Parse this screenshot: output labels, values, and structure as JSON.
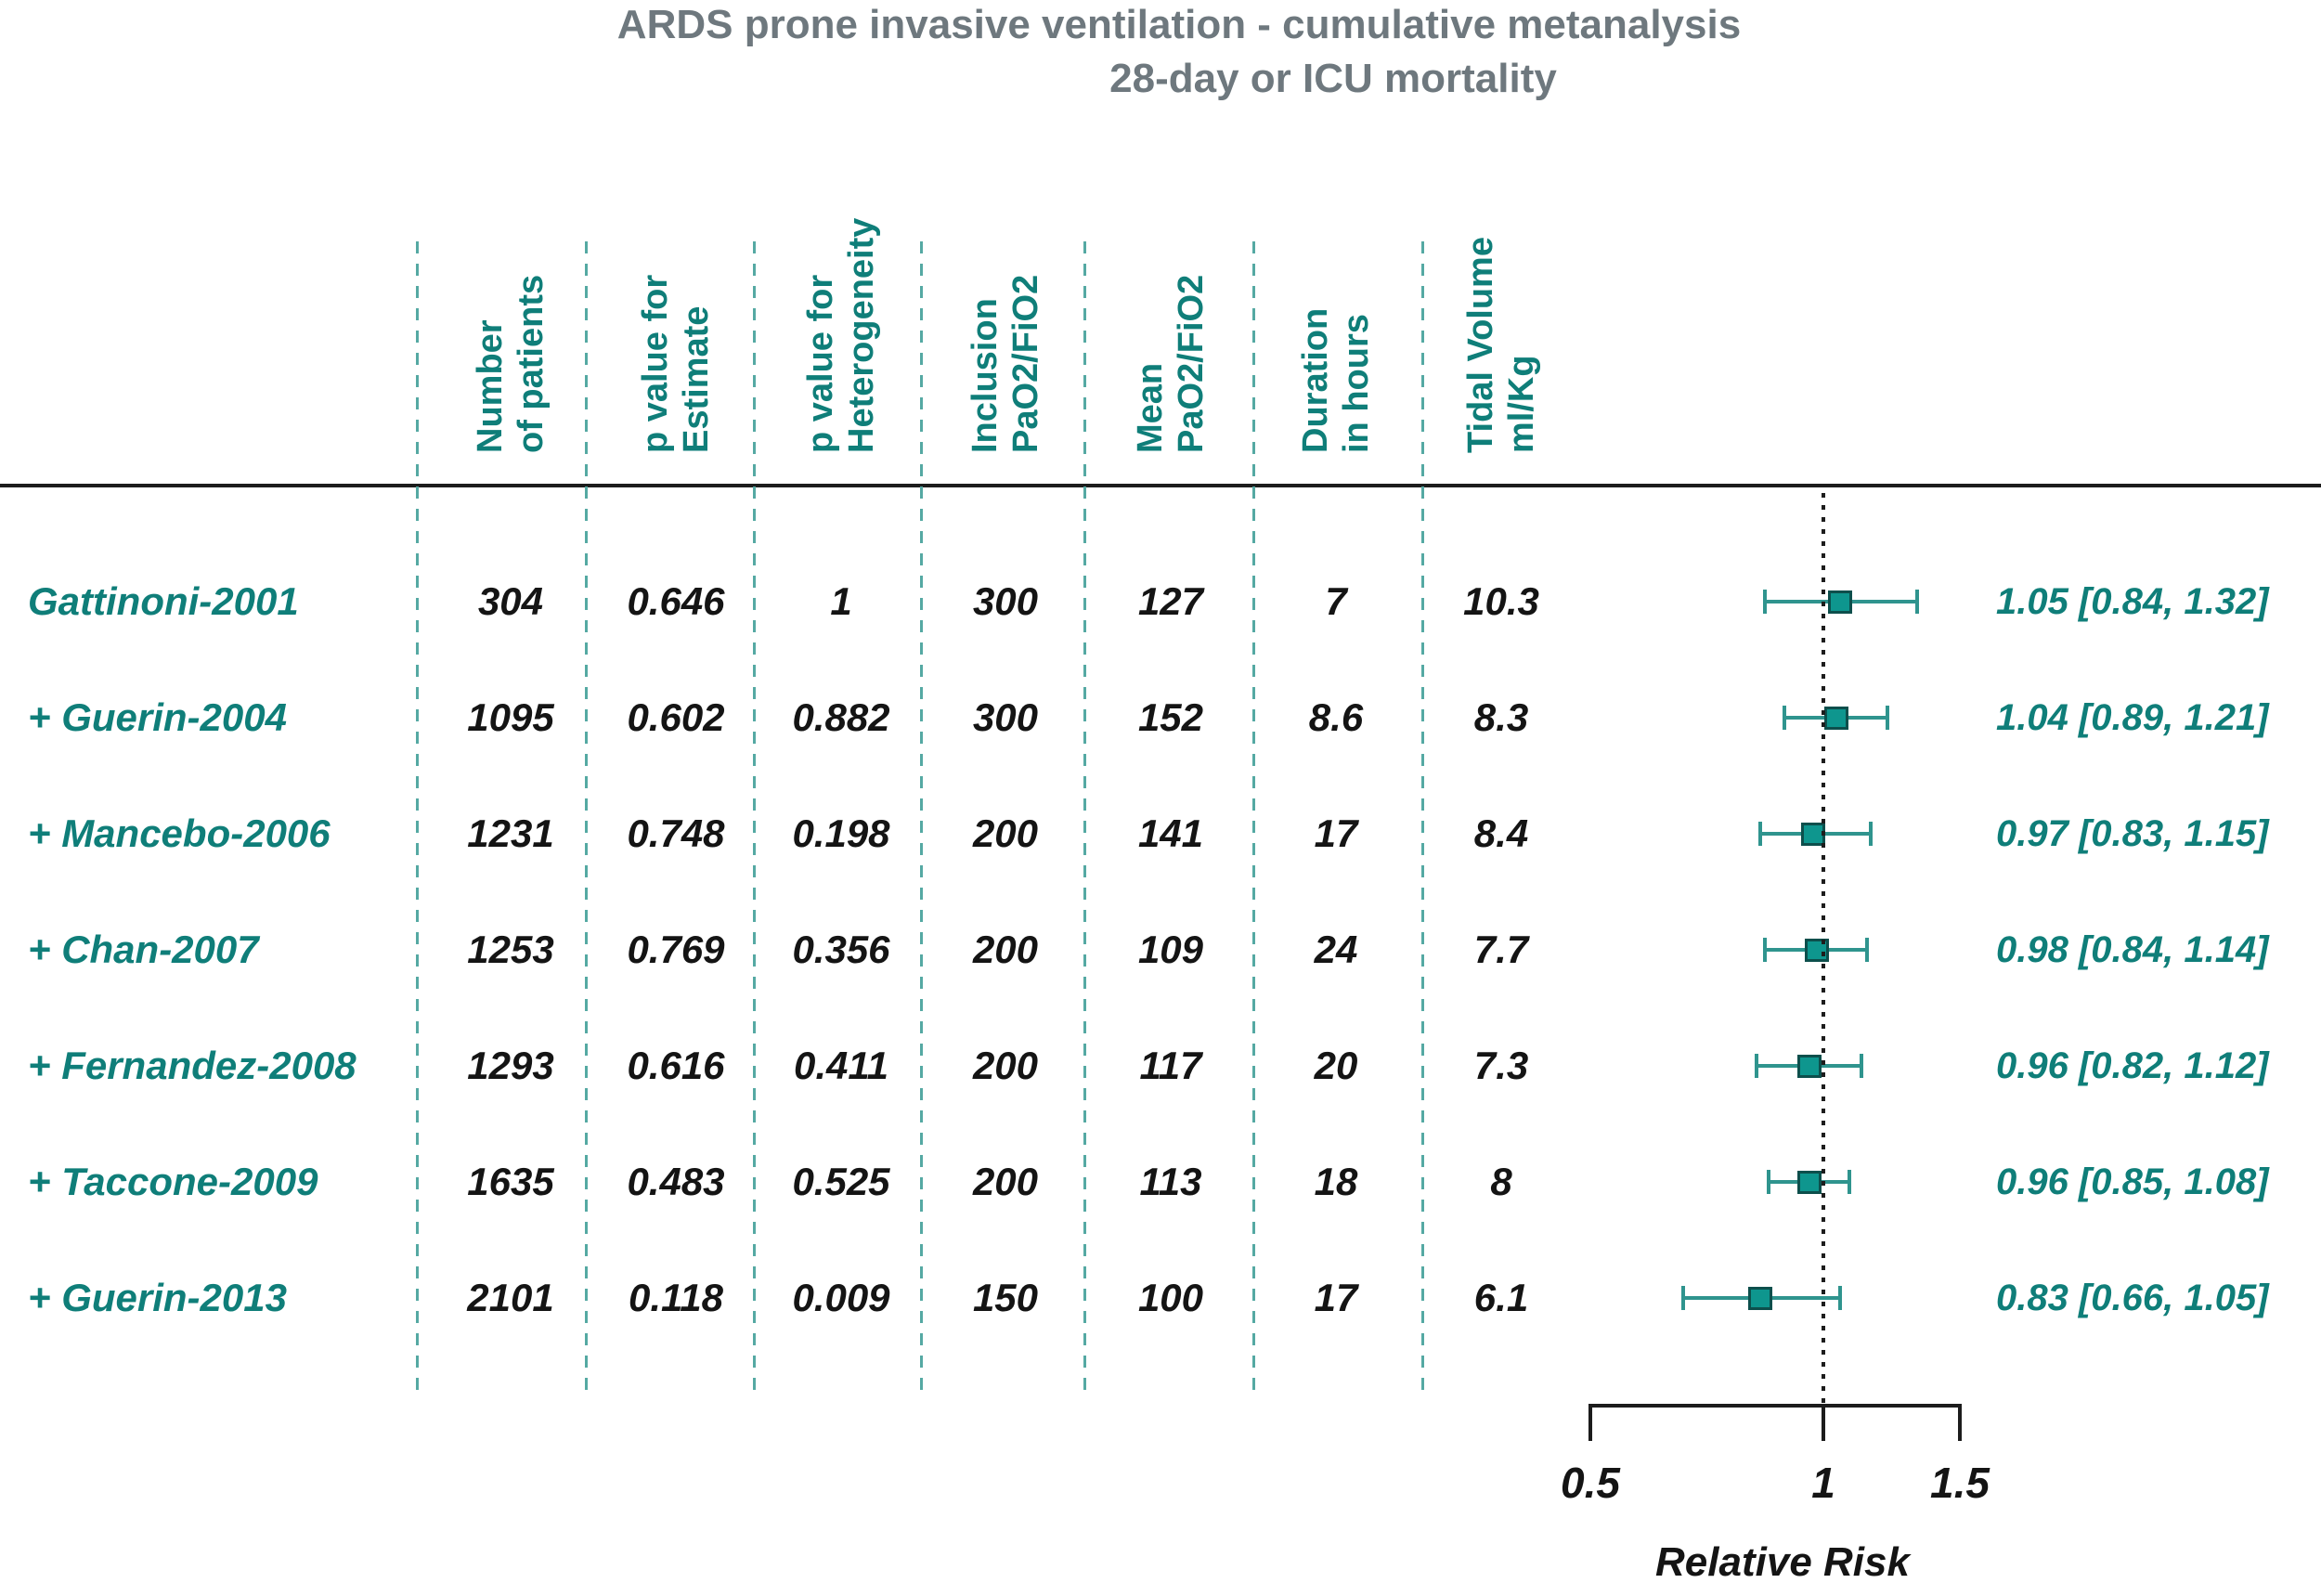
{
  "title": {
    "line1": "ARDS prone invasive ventilation - cumulative metanalysis",
    "line2": "28-day or ICU mortality"
  },
  "colors": {
    "teal": "#0f7e79",
    "title_gray": "#6e787e",
    "dash": "#55a9a3",
    "whisker": "#2f948e",
    "marker_fill": "#0e968e",
    "marker_border": "#0d4f4c"
  },
  "chart_data": {
    "type": "forest",
    "title": "ARDS prone invasive ventilation - cumulative metanalysis 28-day or ICU mortality",
    "scale": "log",
    "columns": [
      "Number\nof patients",
      "p value for\nEstimate",
      "p value for\nHeterogeneity",
      "Inclusion\nPaO2/FiO2",
      "Mean\nPaO2/FiO2",
      "Duration\nin hours",
      "Tidal Volume\nml/Kg"
    ],
    "rows": [
      {
        "study": "Gattinoni-2001",
        "values": [
          "304",
          "0.646",
          "1",
          "300",
          "127",
          "7",
          "10.3"
        ],
        "rr": 1.05,
        "ci_low": 0.84,
        "ci_high": 1.32,
        "rr_label": "1.05 [0.84, 1.32]"
      },
      {
        "study": "+ Guerin-2004",
        "values": [
          "1095",
          "0.602",
          "0.882",
          "300",
          "152",
          "8.6",
          "8.3"
        ],
        "rr": 1.04,
        "ci_low": 0.89,
        "ci_high": 1.21,
        "rr_label": "1.04 [0.89, 1.21]"
      },
      {
        "study": "+ Mancebo-2006",
        "values": [
          "1231",
          "0.748",
          "0.198",
          "200",
          "141",
          "17",
          "8.4"
        ],
        "rr": 0.97,
        "ci_low": 0.83,
        "ci_high": 1.15,
        "rr_label": "0.97 [0.83, 1.15]"
      },
      {
        "study": "+ Chan-2007",
        "values": [
          "1253",
          "0.769",
          "0.356",
          "200",
          "109",
          "24",
          "7.7"
        ],
        "rr": 0.98,
        "ci_low": 0.84,
        "ci_high": 1.14,
        "rr_label": "0.98 [0.84, 1.14]"
      },
      {
        "study": "+ Fernandez-2008",
        "values": [
          "1293",
          "0.616",
          "0.411",
          "200",
          "117",
          "20",
          "7.3"
        ],
        "rr": 0.96,
        "ci_low": 0.82,
        "ci_high": 1.12,
        "rr_label": "0.96 [0.82, 1.12]"
      },
      {
        "study": "+ Taccone-2009",
        "values": [
          "1635",
          "0.483",
          "0.525",
          "200",
          "113",
          "18",
          "8"
        ],
        "rr": 0.96,
        "ci_low": 0.85,
        "ci_high": 1.08,
        "rr_label": "0.96 [0.85, 1.08]"
      },
      {
        "study": "+ Guerin-2013",
        "values": [
          "2101",
          "0.118",
          "0.009",
          "150",
          "100",
          "17",
          "6.1"
        ],
        "rr": 0.83,
        "ci_low": 0.66,
        "ci_high": 1.05,
        "rr_label": "0.83 [0.66, 1.05]"
      }
    ],
    "axis": {
      "label": "Relative Risk",
      "ticks": [
        "0.5",
        "1",
        "1.5"
      ],
      "tick_values": [
        0.5,
        1,
        1.5
      ],
      "range": [
        0.5,
        1.5
      ],
      "reference_line": 1
    }
  }
}
